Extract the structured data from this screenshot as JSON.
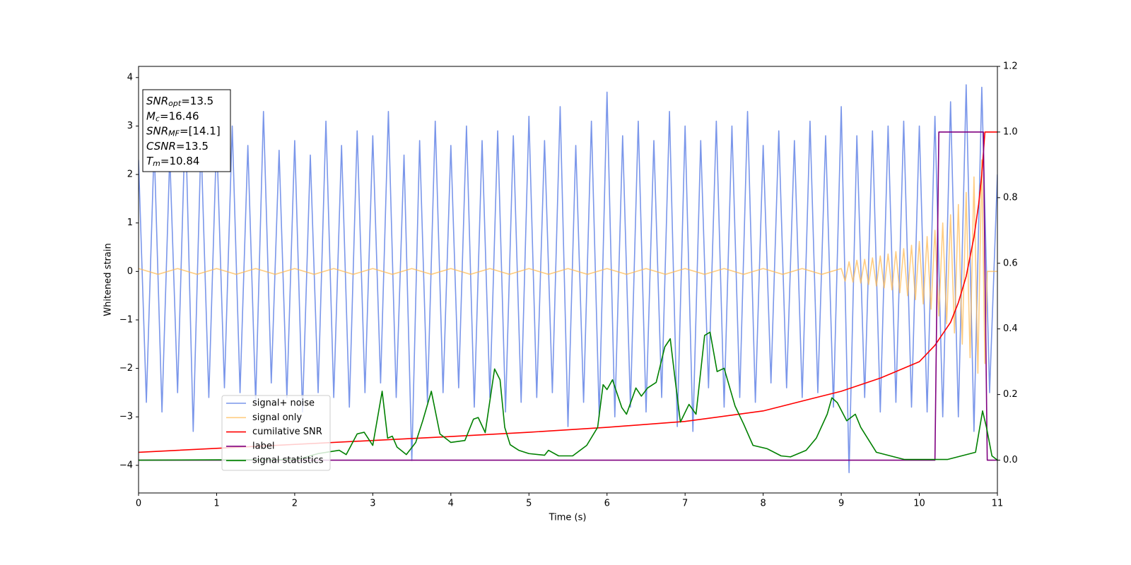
{
  "chart_data": {
    "type": "line",
    "xlabel": "Time (s)",
    "ylabel": "Whitened strain",
    "xlim": [
      0,
      11
    ],
    "xticks": [
      0,
      1,
      2,
      3,
      4,
      5,
      6,
      7,
      8,
      9,
      10,
      11
    ],
    "ylim": [
      -4.57,
      4.23
    ],
    "yticks": [
      {
        "value": -4,
        "label": "−4"
      },
      {
        "value": -3,
        "label": "−3"
      },
      {
        "value": -2,
        "label": "−2"
      },
      {
        "value": -1,
        "label": "−1"
      },
      0,
      1,
      2,
      3,
      4
    ],
    "y2lim": [
      -0.1,
      1.2
    ],
    "y2ticks": [
      {
        "value": 0,
        "label": "0.0"
      },
      0.2,
      0.4,
      0.6,
      0.8,
      {
        "value": 1,
        "label": "1.0"
      },
      1.2
    ],
    "legend": "lower left",
    "annotation": [
      {
        "symbol": "SNR",
        "sub": "opt",
        "text": "=13.5"
      },
      {
        "symbol": "M",
        "sub": "c",
        "text": "=16.46"
      },
      {
        "symbol": "SNR",
        "sub": "MF",
        "text": "=[14.1]"
      },
      {
        "symbol": "CSNR",
        "text": "=13.5"
      },
      {
        "symbol": "T",
        "sub": "m",
        "text": "=10.84"
      }
    ],
    "series": [
      {
        "name": "signal+ noise",
        "color": "#4169e1",
        "opacity": 0.7,
        "x": [
          0,
          0.1,
          0.2,
          0.3,
          0.4,
          0.5,
          0.6,
          0.7,
          0.8,
          0.9,
          1,
          1.1,
          1.2,
          1.3,
          1.4,
          1.5,
          1.6,
          1.7,
          1.8,
          1.9,
          2,
          2.1,
          2.2,
          2.3,
          2.4,
          2.5,
          2.6,
          2.7,
          2.8,
          2.9,
          3,
          3.1,
          3.2,
          3.3,
          3.4,
          3.5,
          3.6,
          3.7,
          3.8,
          3.9,
          4,
          4.1,
          4.2,
          4.3,
          4.4,
          4.5,
          4.6,
          4.7,
          4.8,
          4.9,
          5,
          5.1,
          5.2,
          5.3,
          5.4,
          5.5,
          5.6,
          5.7,
          5.8,
          5.9,
          6,
          6.1,
          6.2,
          6.3,
          6.4,
          6.5,
          6.6,
          6.7,
          6.8,
          6.9,
          7,
          7.1,
          7.2,
          7.3,
          7.4,
          7.5,
          7.6,
          7.7,
          7.8,
          7.9,
          8,
          8.1,
          8.2,
          8.3,
          8.4,
          8.5,
          8.6,
          8.7,
          8.8,
          8.9,
          9,
          9.1,
          9.2,
          9.3,
          9.4,
          9.5,
          9.6,
          9.7,
          9.8,
          9.9,
          10,
          10.1,
          10.2,
          10.3,
          10.4,
          10.5,
          10.6,
          10.7,
          10.8,
          10.9,
          11
        ],
        "values": [
          2.3,
          -2.7,
          2.6,
          -2.9,
          2.4,
          -2.5,
          3.2,
          -3.3,
          2.7,
          -2.6,
          2.8,
          -2.4,
          3.0,
          -2.5,
          2.6,
          -2.7,
          3.3,
          -2.3,
          2.5,
          -2.6,
          2.7,
          -2.9,
          2.4,
          -2.5,
          3.1,
          -2.6,
          2.6,
          -2.8,
          2.9,
          -2.5,
          2.8,
          -2.3,
          3.3,
          -2.6,
          2.4,
          -3.9,
          2.7,
          -2.7,
          3.1,
          -2.5,
          2.6,
          -2.4,
          3.0,
          -2.8,
          2.7,
          -2.6,
          2.9,
          -2.9,
          2.8,
          -2.7,
          3.2,
          -2.6,
          2.7,
          -2.5,
          3.4,
          -3.2,
          2.6,
          -2.7,
          3.1,
          -3.0,
          3.7,
          -3.0,
          2.8,
          -2.8,
          3.1,
          -2.9,
          2.7,
          -2.6,
          3.3,
          -3.2,
          3.0,
          -3.3,
          2.7,
          -2.4,
          3.1,
          -2.8,
          3.0,
          -2.6,
          3.3,
          -2.7,
          2.6,
          -2.3,
          2.9,
          -2.4,
          2.7,
          -2.6,
          3.1,
          -2.5,
          2.8,
          -2.8,
          3.4,
          -4.15,
          2.8,
          -2.6,
          2.9,
          -2.9,
          3.0,
          -2.7,
          3.1,
          -2.8,
          3.0,
          -2.9,
          3.2,
          -3.0,
          3.5,
          -3.0,
          3.85,
          -3.3,
          3.8,
          -2.5,
          2.0
        ]
      },
      {
        "name": "signal only",
        "color": "#ffb84d",
        "opacity": 0.7,
        "x": [
          0,
          0.25,
          0.5,
          0.75,
          1,
          1.25,
          1.5,
          1.75,
          2,
          2.25,
          2.5,
          2.75,
          3,
          3.25,
          3.5,
          3.75,
          4,
          4.25,
          4.5,
          4.75,
          5,
          5.25,
          5.5,
          5.75,
          6,
          6.25,
          6.5,
          6.75,
          7,
          7.25,
          7.5,
          7.75,
          8,
          8.25,
          8.5,
          8.75,
          9,
          9.05,
          9.1,
          9.15,
          9.2,
          9.25,
          9.3,
          9.35,
          9.4,
          9.45,
          9.5,
          9.55,
          9.6,
          9.65,
          9.7,
          9.75,
          9.8,
          9.85,
          9.9,
          9.95,
          10,
          10.05,
          10.1,
          10.15,
          10.2,
          10.25,
          10.3,
          10.35,
          10.4,
          10.45,
          10.5,
          10.55,
          10.6,
          10.65,
          10.7,
          10.75,
          10.8,
          10.84,
          10.87,
          11
        ],
        "values": [
          0.06,
          -0.06,
          0.06,
          -0.06,
          0.06,
          -0.06,
          0.06,
          -0.06,
          0.06,
          -0.06,
          0.06,
          -0.06,
          0.06,
          -0.06,
          0.06,
          -0.06,
          0.06,
          -0.06,
          0.06,
          -0.06,
          0.06,
          -0.06,
          0.06,
          -0.06,
          0.06,
          -0.06,
          0.06,
          -0.06,
          0.06,
          -0.06,
          0.06,
          -0.06,
          0.06,
          -0.06,
          0.06,
          -0.06,
          0.06,
          -0.2,
          0.2,
          -0.22,
          0.23,
          -0.24,
          0.25,
          -0.27,
          0.28,
          -0.3,
          0.32,
          -0.34,
          0.36,
          -0.38,
          0.41,
          -0.44,
          0.47,
          -0.5,
          0.54,
          -0.58,
          0.62,
          -0.67,
          0.72,
          -0.78,
          0.85,
          -0.92,
          1.0,
          -1.08,
          1.17,
          -1.27,
          1.38,
          -1.5,
          1.63,
          -1.78,
          1.95,
          -2.1,
          2.3,
          -1.9,
          0,
          0
        ]
      },
      {
        "name": "cumilative SNR",
        "color": "#ff0000",
        "axis": "y2",
        "x": [
          0,
          1,
          2,
          3,
          4,
          5,
          6,
          7,
          8,
          9,
          9.5,
          10,
          10.2,
          10.4,
          10.5,
          10.6,
          10.7,
          10.76,
          10.8,
          10.84,
          11
        ],
        "values": [
          0.024,
          0.036,
          0.048,
          0.06,
          0.072,
          0.085,
          0.1,
          0.118,
          0.15,
          0.21,
          0.25,
          0.3,
          0.35,
          0.42,
          0.48,
          0.56,
          0.68,
          0.78,
          0.87,
          1.0,
          1.0
        ]
      },
      {
        "name": "label",
        "color": "#800080",
        "axis": "y2",
        "x": [
          0,
          10.2,
          10.25,
          10.82,
          10.87,
          11
        ],
        "values": [
          0,
          0,
          1,
          1,
          0,
          0
        ]
      },
      {
        "name": "signal statistics",
        "color": "#008000",
        "axis": "y2",
        "x": [
          0,
          2.03,
          2.3,
          2.57,
          2.66,
          2.8,
          2.89,
          3.0,
          3.12,
          3.19,
          3.25,
          3.31,
          3.43,
          3.55,
          3.64,
          3.75,
          3.86,
          4.0,
          4.18,
          4.29,
          4.35,
          4.44,
          4.56,
          4.63,
          4.69,
          4.76,
          4.87,
          5.0,
          5.2,
          5.25,
          5.38,
          5.56,
          5.74,
          5.88,
          5.95,
          6.0,
          6.07,
          6.19,
          6.25,
          6.37,
          6.44,
          6.52,
          6.63,
          6.74,
          6.81,
          6.87,
          6.94,
          7.05,
          7.14,
          7.25,
          7.32,
          7.41,
          7.5,
          7.64,
          7.75,
          7.87,
          8.05,
          8.23,
          8.35,
          8.55,
          8.68,
          8.82,
          8.88,
          8.95,
          9.07,
          9.18,
          9.25,
          9.45,
          9.81,
          10.36,
          10.72,
          10.81,
          10.86,
          10.93,
          11
        ],
        "values": [
          0,
          0.002,
          0.02,
          0.03,
          0.017,
          0.08,
          0.085,
          0.045,
          0.21,
          0.067,
          0.073,
          0.04,
          0.017,
          0.054,
          0.12,
          0.21,
          0.08,
          0.054,
          0.06,
          0.125,
          0.13,
          0.084,
          0.278,
          0.245,
          0.1,
          0.047,
          0.03,
          0.02,
          0.015,
          0.03,
          0.013,
          0.013,
          0.045,
          0.1,
          0.23,
          0.215,
          0.245,
          0.16,
          0.14,
          0.22,
          0.195,
          0.22,
          0.237,
          0.345,
          0.37,
          0.25,
          0.116,
          0.17,
          0.14,
          0.38,
          0.39,
          0.27,
          0.28,
          0.165,
          0.11,
          0.045,
          0.035,
          0.013,
          0.01,
          0.03,
          0.067,
          0.14,
          0.19,
          0.175,
          0.12,
          0.14,
          0.1,
          0.024,
          0.002,
          0.002,
          0.024,
          0.15,
          0.1,
          0.013,
          0
        ]
      }
    ]
  }
}
